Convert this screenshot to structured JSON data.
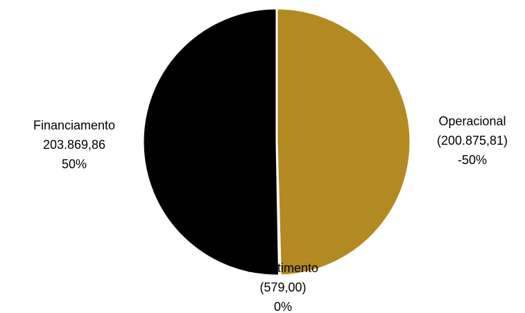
{
  "chart_data": {
    "type": "pie",
    "slices": [
      {
        "name": "Operacional",
        "value_text": "(200.875,81)",
        "percent_text": "-50%",
        "value": 200875.81,
        "color": "#b38a22"
      },
      {
        "name": "Investimento",
        "value_text": "(579,00)",
        "percent_text": "0%",
        "value": 579.0,
        "color": "#ffffff"
      },
      {
        "name": "Financiamento",
        "value_text": "203.869,86",
        "percent_text": "50%",
        "value": 203869.86,
        "color": "#000000"
      }
    ]
  }
}
